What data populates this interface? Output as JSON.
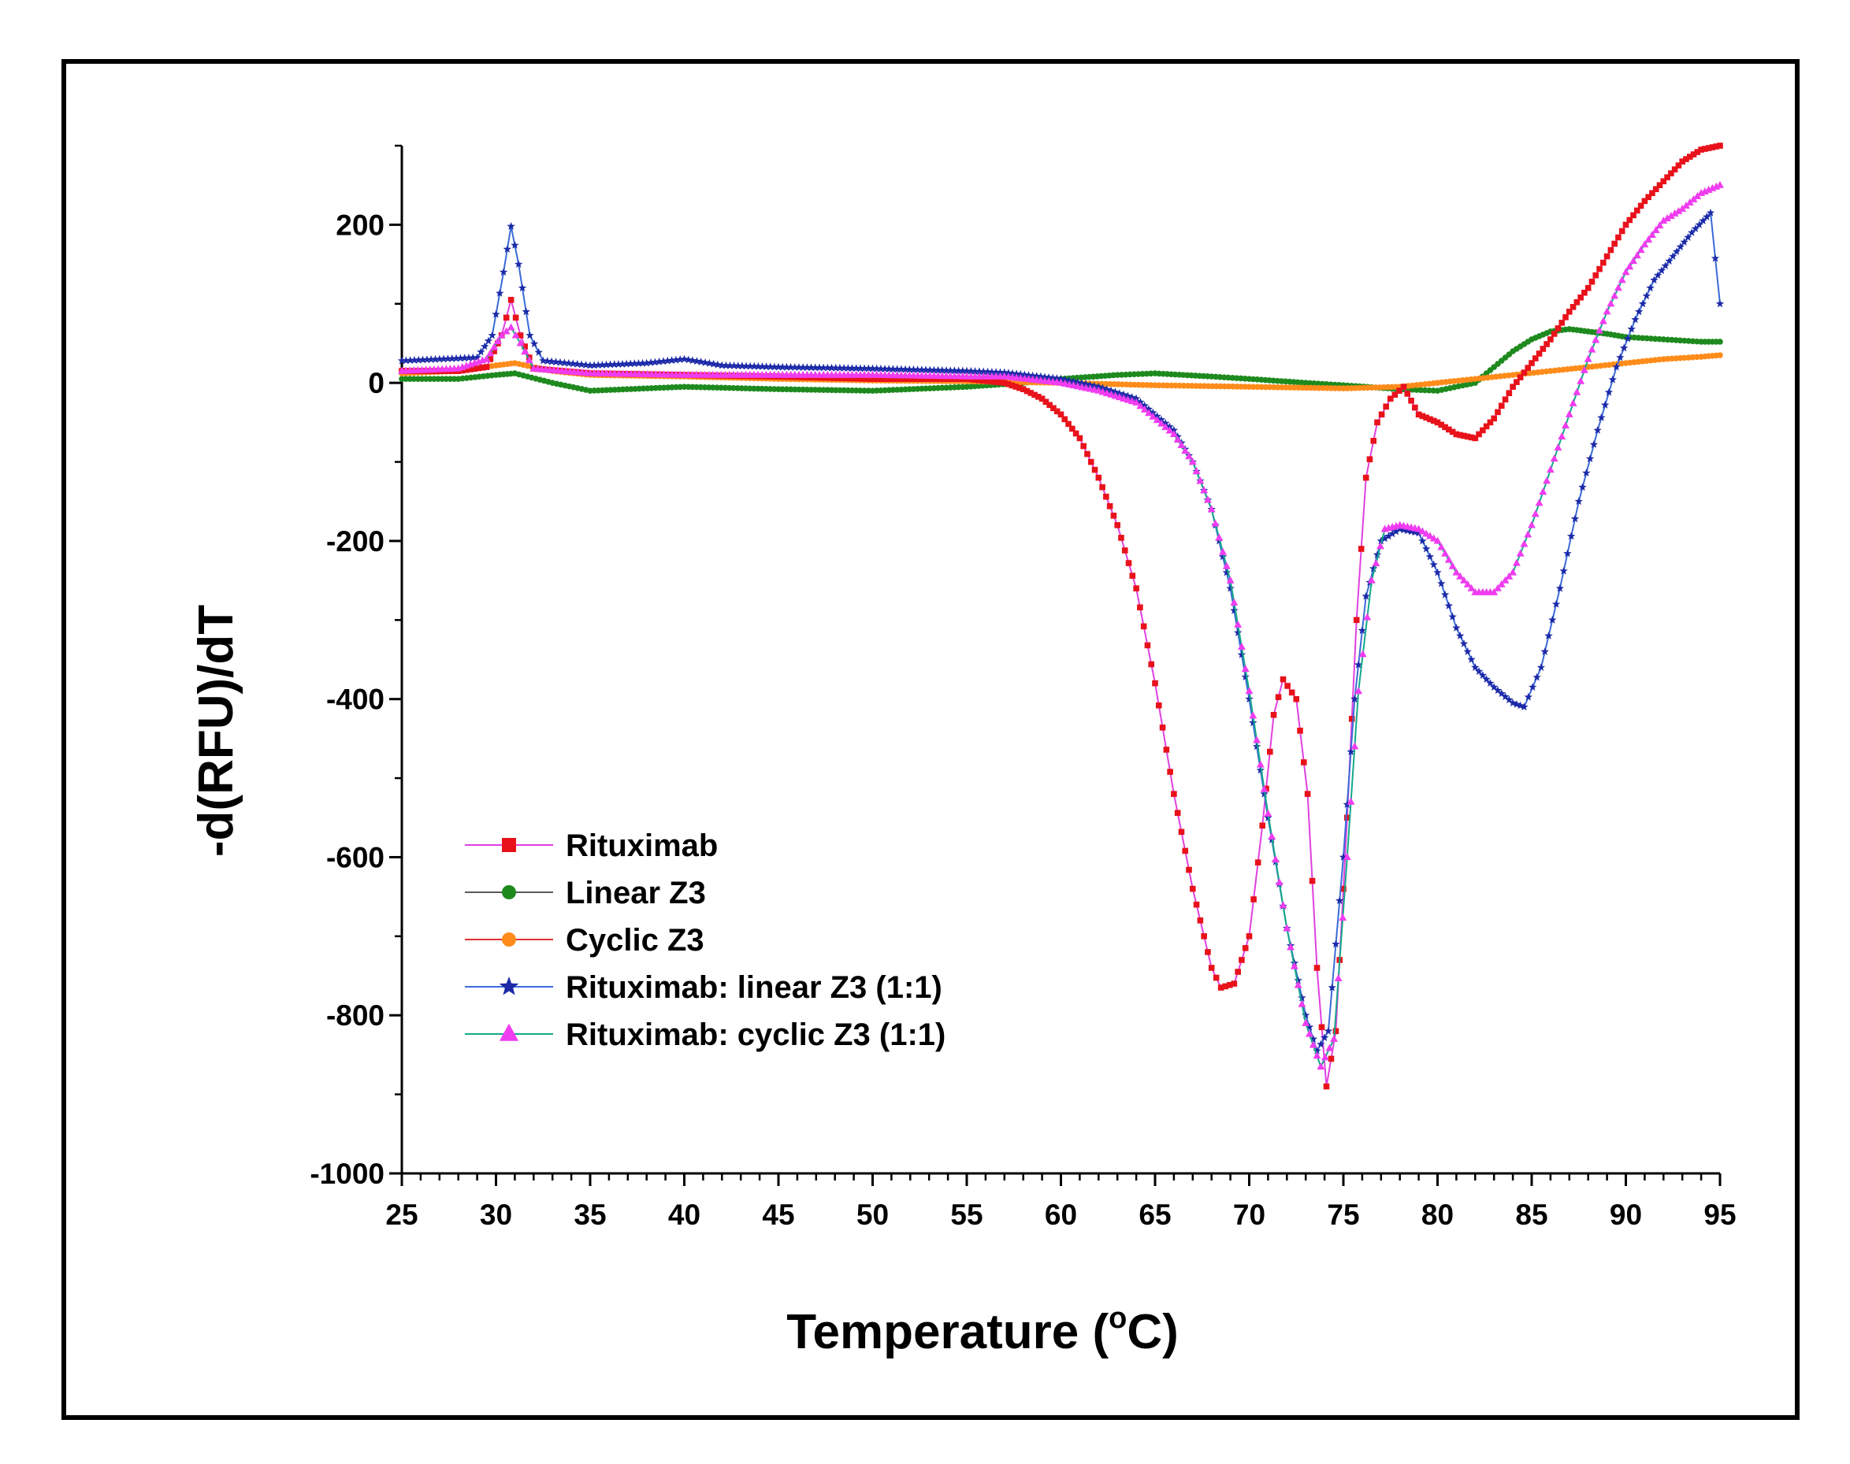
{
  "chart_data": {
    "type": "line",
    "xlabel": "Temperature (",
    "xlabel_sup": "o",
    "xlabel_suffix": "C)",
    "ylabel": "-d(RFU)/dT",
    "xlim": [
      25,
      95
    ],
    "ylim": [
      -1000,
      300
    ],
    "x_ticks": [
      25,
      30,
      35,
      40,
      45,
      50,
      55,
      60,
      65,
      70,
      75,
      80,
      85,
      90,
      95
    ],
    "x_tick_labels": [
      "25",
      "30",
      "35",
      "40",
      "45",
      "50",
      "55",
      "60",
      "65",
      "70",
      "75",
      "80",
      "85",
      "90",
      "95"
    ],
    "y_ticks": [
      -1000,
      -800,
      -600,
      -400,
      -200,
      0,
      200
    ],
    "y_tick_labels": [
      "-1000",
      "-800",
      "-600",
      "-400",
      "-200",
      "0",
      "200"
    ],
    "grid": false,
    "legend_position": "lower-left",
    "series": [
      {
        "name": "Rituximab",
        "marker": "square",
        "marker_color": "#e8121a",
        "line_color": "#e040e0",
        "points": [
          [
            25,
            15
          ],
          [
            28,
            15
          ],
          [
            29.5,
            20
          ],
          [
            30.3,
            60
          ],
          [
            30.8,
            105
          ],
          [
            31.3,
            60
          ],
          [
            32,
            18
          ],
          [
            35,
            12
          ],
          [
            40,
            10
          ],
          [
            45,
            8
          ],
          [
            50,
            5
          ],
          [
            55,
            5
          ],
          [
            57,
            0
          ],
          [
            58,
            -8
          ],
          [
            59,
            -20
          ],
          [
            60,
            -40
          ],
          [
            61,
            -70
          ],
          [
            62,
            -120
          ],
          [
            63,
            -180
          ],
          [
            64,
            -260
          ],
          [
            65,
            -380
          ],
          [
            66,
            -520
          ],
          [
            67,
            -640
          ],
          [
            68,
            -740
          ],
          [
            68.5,
            -765
          ],
          [
            69.2,
            -760
          ],
          [
            70,
            -700
          ],
          [
            70.7,
            -560
          ],
          [
            71.3,
            -420
          ],
          [
            71.8,
            -375
          ],
          [
            72.5,
            -400
          ],
          [
            73.1,
            -520
          ],
          [
            73.6,
            -740
          ],
          [
            74.1,
            -890
          ],
          [
            74.6,
            -820
          ],
          [
            75.2,
            -550
          ],
          [
            75.7,
            -300
          ],
          [
            76.2,
            -120
          ],
          [
            76.8,
            -50
          ],
          [
            77.5,
            -20
          ],
          [
            78.2,
            -5
          ],
          [
            79,
            -40
          ],
          [
            80,
            -50
          ],
          [
            81,
            -65
          ],
          [
            82,
            -70
          ],
          [
            83,
            -45
          ],
          [
            84,
            -5
          ],
          [
            85,
            25
          ],
          [
            86,
            55
          ],
          [
            87,
            90
          ],
          [
            88,
            120
          ],
          [
            89,
            160
          ],
          [
            90,
            200
          ],
          [
            91,
            230
          ],
          [
            92,
            255
          ],
          [
            93,
            280
          ],
          [
            94,
            295
          ],
          [
            95,
            300
          ]
        ]
      },
      {
        "name": "Linear Z3",
        "marker": "circle",
        "marker_color": "#1e8a1e",
        "line_color": "#5a5a5a",
        "points": [
          [
            25,
            5
          ],
          [
            28,
            5
          ],
          [
            30,
            10
          ],
          [
            31,
            12
          ],
          [
            33,
            0
          ],
          [
            35,
            -10
          ],
          [
            40,
            -5
          ],
          [
            45,
            -8
          ],
          [
            50,
            -10
          ],
          [
            55,
            -5
          ],
          [
            58,
            0
          ],
          [
            60,
            5
          ],
          [
            63,
            10
          ],
          [
            65,
            12
          ],
          [
            68,
            8
          ],
          [
            70,
            5
          ],
          [
            73,
            0
          ],
          [
            75,
            -3
          ],
          [
            78,
            -8
          ],
          [
            80,
            -10
          ],
          [
            82,
            0
          ],
          [
            83,
            20
          ],
          [
            84,
            40
          ],
          [
            85,
            55
          ],
          [
            86,
            65
          ],
          [
            87,
            68
          ],
          [
            88,
            65
          ],
          [
            89,
            62
          ],
          [
            90,
            58
          ],
          [
            92,
            55
          ],
          [
            94,
            52
          ],
          [
            95,
            52
          ]
        ]
      },
      {
        "name": "Cyclic Z3",
        "marker": "circle",
        "marker_color": "#ff8c1a",
        "line_color": "#e03030",
        "points": [
          [
            25,
            12
          ],
          [
            28,
            15
          ],
          [
            30,
            22
          ],
          [
            31,
            25
          ],
          [
            33,
            15
          ],
          [
            35,
            10
          ],
          [
            40,
            8
          ],
          [
            45,
            5
          ],
          [
            50,
            3
          ],
          [
            55,
            2
          ],
          [
            60,
            0
          ],
          [
            65,
            -3
          ],
          [
            70,
            -5
          ],
          [
            75,
            -7
          ],
          [
            78,
            -5
          ],
          [
            80,
            0
          ],
          [
            82,
            5
          ],
          [
            84,
            10
          ],
          [
            86,
            15
          ],
          [
            88,
            20
          ],
          [
            90,
            25
          ],
          [
            92,
            30
          ],
          [
            94,
            33
          ],
          [
            95,
            35
          ]
        ]
      },
      {
        "name": "Rituximab: linear Z3 (1:1)",
        "marker": "star",
        "marker_color": "#1c2aa8",
        "line_color": "#3a6ad8",
        "points": [
          [
            25,
            28
          ],
          [
            27,
            30
          ],
          [
            29,
            32
          ],
          [
            29.8,
            60
          ],
          [
            30.4,
            140
          ],
          [
            30.8,
            198
          ],
          [
            31.2,
            150
          ],
          [
            31.8,
            60
          ],
          [
            32.5,
            28
          ],
          [
            35,
            22
          ],
          [
            38,
            25
          ],
          [
            40,
            30
          ],
          [
            42,
            22
          ],
          [
            45,
            20
          ],
          [
            50,
            18
          ],
          [
            55,
            15
          ],
          [
            57,
            13
          ],
          [
            60,
            5
          ],
          [
            62,
            -5
          ],
          [
            64,
            -20
          ],
          [
            66,
            -60
          ],
          [
            67,
            -100
          ],
          [
            68,
            -160
          ],
          [
            69,
            -260
          ],
          [
            70,
            -400
          ],
          [
            71,
            -550
          ],
          [
            72,
            -690
          ],
          [
            73,
            -800
          ],
          [
            73.6,
            -845
          ],
          [
            74.2,
            -820
          ],
          [
            75,
            -600
          ],
          [
            75.6,
            -400
          ],
          [
            76.2,
            -270
          ],
          [
            77,
            -200
          ],
          [
            78,
            -185
          ],
          [
            79,
            -190
          ],
          [
            80,
            -240
          ],
          [
            81,
            -310
          ],
          [
            82,
            -360
          ],
          [
            83,
            -385
          ],
          [
            84,
            -405
          ],
          [
            84.6,
            -410
          ],
          [
            85.5,
            -360
          ],
          [
            86.5,
            -260
          ],
          [
            87.5,
            -150
          ],
          [
            88.5,
            -60
          ],
          [
            89.5,
            20
          ],
          [
            90.5,
            80
          ],
          [
            91.5,
            130
          ],
          [
            92.5,
            160
          ],
          [
            93.5,
            190
          ],
          [
            94.5,
            215
          ],
          [
            95,
            100
          ]
        ]
      },
      {
        "name": "Rituximab: cyclic Z3 (1:1)",
        "marker": "triangle",
        "marker_color": "#f03cf0",
        "line_color": "#14a88a",
        "points": [
          [
            25,
            15
          ],
          [
            28,
            18
          ],
          [
            29.5,
            30
          ],
          [
            30.3,
            60
          ],
          [
            30.8,
            70
          ],
          [
            31.3,
            50
          ],
          [
            32,
            18
          ],
          [
            35,
            12
          ],
          [
            40,
            10
          ],
          [
            45,
            10
          ],
          [
            50,
            10
          ],
          [
            55,
            8
          ],
          [
            57,
            8
          ],
          [
            60,
            0
          ],
          [
            62,
            -10
          ],
          [
            64,
            -25
          ],
          [
            66,
            -65
          ],
          [
            67,
            -100
          ],
          [
            68,
            -160
          ],
          [
            69,
            -250
          ],
          [
            70,
            -390
          ],
          [
            71,
            -545
          ],
          [
            72,
            -690
          ],
          [
            73,
            -810
          ],
          [
            73.8,
            -865
          ],
          [
            74.5,
            -830
          ],
          [
            75.2,
            -600
          ],
          [
            75.8,
            -390
          ],
          [
            76.5,
            -250
          ],
          [
            77.2,
            -185
          ],
          [
            78,
            -180
          ],
          [
            79,
            -185
          ],
          [
            80,
            -200
          ],
          [
            81,
            -240
          ],
          [
            82,
            -265
          ],
          [
            83,
            -265
          ],
          [
            84,
            -240
          ],
          [
            85,
            -180
          ],
          [
            86,
            -110
          ],
          [
            87,
            -40
          ],
          [
            88,
            30
          ],
          [
            89,
            90
          ],
          [
            90,
            140
          ],
          [
            91,
            175
          ],
          [
            92,
            205
          ],
          [
            93,
            220
          ],
          [
            94,
            240
          ],
          [
            95,
            250
          ]
        ]
      }
    ]
  }
}
